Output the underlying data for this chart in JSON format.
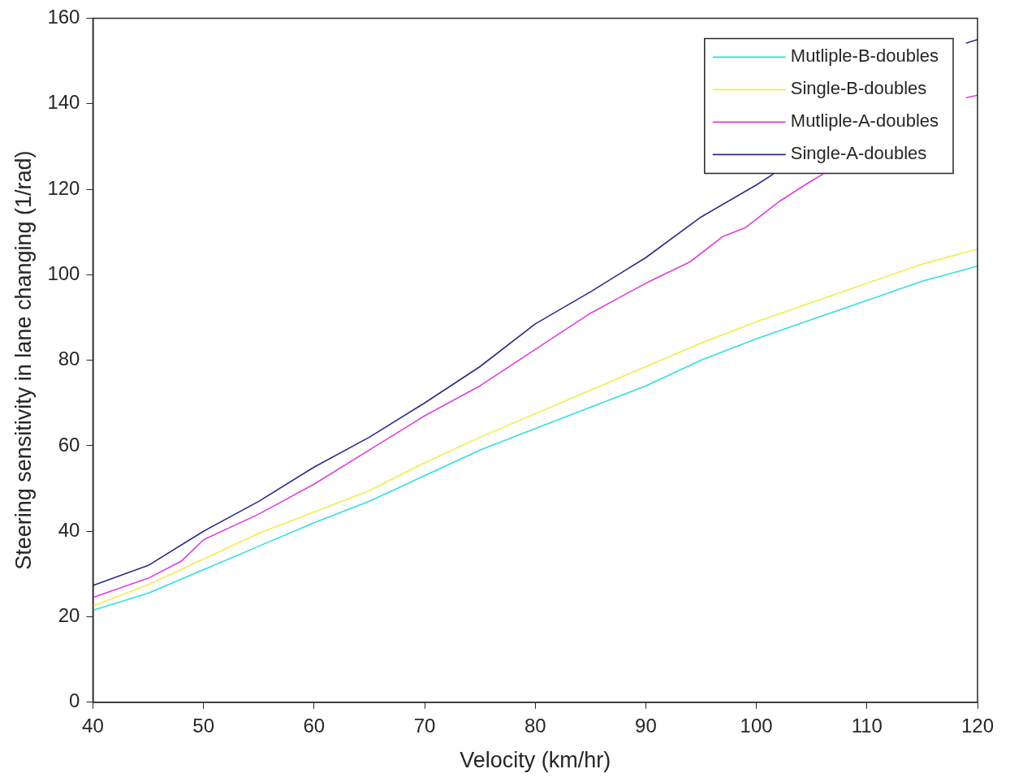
{
  "chart_data": {
    "type": "line",
    "xlabel": "Velocity (km/hr)",
    "ylabel": "Steering sensitivity in lane changing (1/rad)",
    "xlim": [
      40,
      120
    ],
    "xticks": [
      40,
      50,
      60,
      70,
      80,
      90,
      100,
      110,
      120
    ],
    "ylim": [
      0,
      160
    ],
    "yticks": [
      0,
      20,
      40,
      60,
      80,
      100,
      120,
      140,
      160
    ],
    "grid": false,
    "legend": "top right",
    "marker": "none",
    "line_style": "solid",
    "series": [
      {
        "name": "Mutliple-B-doubles",
        "color": "#33dede",
        "x": [
          40,
          45,
          50,
          55,
          60,
          65,
          70,
          75,
          80,
          85,
          90,
          95,
          100,
          105,
          110,
          115,
          120
        ],
        "values": [
          21.5,
          25.5,
          31,
          36.5,
          42,
          47,
          53,
          59,
          64,
          69,
          74,
          80,
          85,
          89.5,
          94,
          98.5,
          102
        ]
      },
      {
        "name": "Single-B-doubles",
        "color": "#f2ee4a",
        "x": [
          40,
          45,
          50,
          55,
          60,
          65,
          70,
          75,
          80,
          85,
          90,
          95,
          100,
          105,
          110,
          115,
          120
        ],
        "values": [
          22.5,
          27.5,
          33.5,
          39.5,
          44.5,
          49.5,
          56,
          62,
          67.5,
          73,
          78.5,
          84,
          89,
          93.5,
          98,
          102.5,
          106
        ]
      },
      {
        "name": "Mutliple-A-doubles",
        "color": "#de3ede",
        "x": [
          40,
          45,
          48,
          50,
          55,
          60,
          65,
          70,
          75,
          80,
          85,
          90,
          94,
          97,
          99,
          102,
          105,
          106,
          112,
          119,
          120
        ],
        "values": [
          24.5,
          29,
          33,
          38,
          44,
          51,
          59,
          67,
          74,
          82.5,
          91,
          98,
          103,
          109,
          111,
          117,
          122,
          123.5,
          null,
          141.4,
          142
        ]
      },
      {
        "name": "Single-A-doubles",
        "color": "#2b2b8a",
        "x": [
          40,
          45,
          50,
          55,
          60,
          65,
          70,
          75,
          80,
          85,
          90,
          95,
          100,
          101.5,
          110,
          119,
          120
        ],
        "values": [
          27.3,
          32,
          40,
          47,
          55,
          62,
          70,
          78.5,
          88.5,
          96,
          104,
          113.5,
          121,
          123.5,
          null,
          154.2,
          155
        ]
      }
    ]
  }
}
